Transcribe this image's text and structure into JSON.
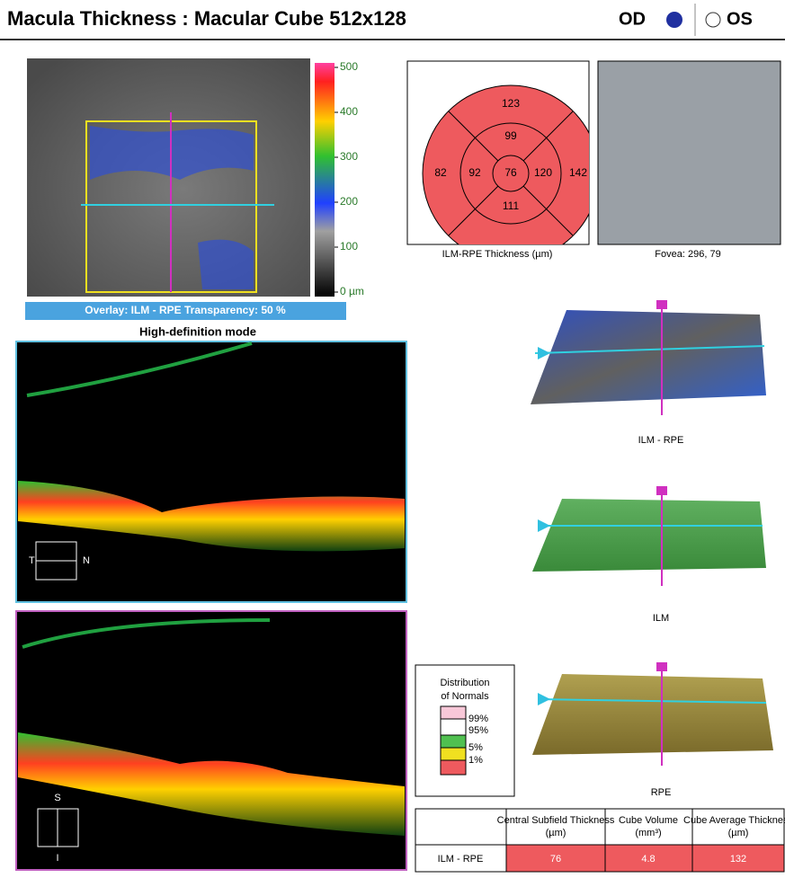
{
  "header": {
    "title": "Macula Thickness : Macular Cube 512x128",
    "od": "OD",
    "os": "OS"
  },
  "color_scale": {
    "ticks": [
      500,
      400,
      300,
      200,
      100,
      {
        "value": 0,
        "label": "0 µm"
      }
    ],
    "range": [
      0,
      500
    ]
  },
  "overlay": "Overlay: ILM - RPE  Transparency: 50 %",
  "mode": "High-definition mode",
  "bscan1": {
    "left": "T",
    "right": "N"
  },
  "bscan2": {
    "top": "S",
    "bottom": "I"
  },
  "etdrs": {
    "values": {
      "outer_superior": 123,
      "inner_superior": 99,
      "outer_temporal": 82,
      "inner_temporal": 92,
      "center": 76,
      "inner_nasal": 120,
      "outer_nasal": 142,
      "inner_inferior": 111
    },
    "caption": "ILM-RPE Thickness (µm)"
  },
  "fovea": "Fovea: 296, 79",
  "maps": [
    "ILM - RPE",
    "ILM",
    "RPE"
  ],
  "legend": {
    "title": [
      "Distribution",
      "of Normals"
    ],
    "items": [
      "99%",
      "95%",
      "5%",
      "1%"
    ]
  },
  "table": {
    "headers": [
      "Central Subfield Thickness (µm)",
      "Cube Volume (mm³)",
      "Cube Average Thickness (µm)"
    ],
    "rows": [
      {
        "label": "ILM - RPE",
        "cells": [
          76,
          4.8,
          132
        ]
      }
    ]
  }
}
